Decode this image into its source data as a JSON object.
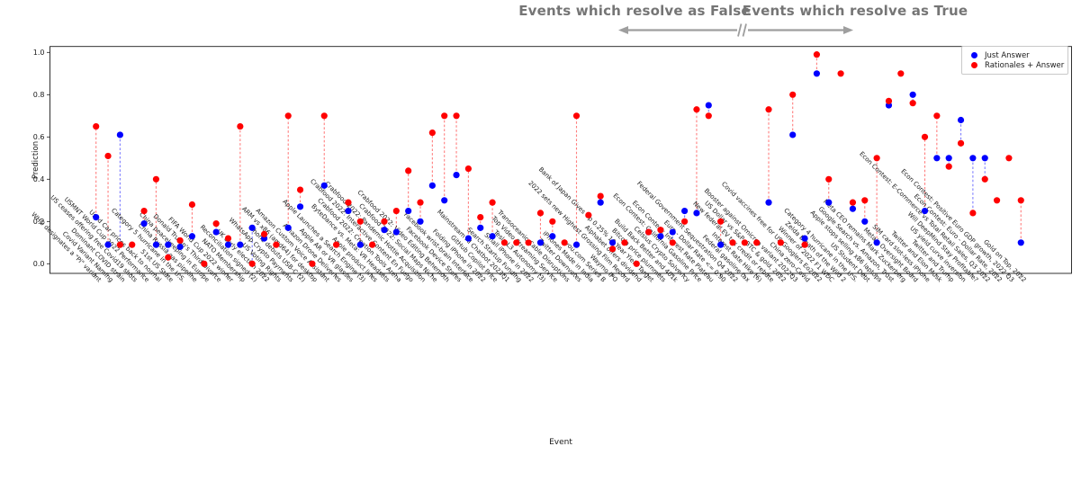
{
  "figure": {
    "annotations": {
      "false_group": "Events which resolve as False",
      "true_group": "Events which resolve as True",
      "arrow_color": "#9e9e9e",
      "text_color": "#757575"
    },
    "axes": {
      "ylabel": "Prediction",
      "xlabel": "Event"
    },
    "legend": {
      "items": [
        {
          "label": "Just Answer",
          "color": "#0000ff"
        },
        {
          "label": "Rationales + Answer",
          "color": "#ff0000"
        }
      ]
    }
  },
  "chart_data": {
    "type": "scatter",
    "title": "",
    "xlabel": "Event",
    "ylabel": "Prediction",
    "ylim": [
      0.0,
      1.0
    ],
    "yticks": [
      0,
      0.2,
      0.4,
      0.6,
      0.8,
      1.0
    ],
    "grid": false,
    "legend_position": "upper right",
    "divider_note": "arrow annotations split x-axis: left group resolves False, right group resolves True",
    "series": [
      {
        "name": "Just Answer",
        "color": "#0000ff"
      },
      {
        "name": "Rationales + Answer",
        "color": "#ff0000"
      }
    ],
    "events": [
      {
        "label": "WHO designates a \"Pi\" variant",
        "just_answer": 0.22,
        "rationales_answer": 0.65
      },
      {
        "label": "Covid Variant Naming",
        "just_answer": 0.09,
        "rationales_answer": 0.51
      },
      {
        "label": "Dominant COVID strain",
        "just_answer": 0.61,
        "rationales_answer": 0.09
      },
      {
        "label": "US ceases offering free Covid19 shots",
        "just_answer": null,
        "rationales_answer": 0.09
      },
      {
        "label": "USMNT World Cup 2022 Performance",
        "just_answer": 0.19,
        "rationales_answer": 0.25
      },
      {
        "label": "Used Car prices back to normal",
        "just_answer": 0.09,
        "rationales_answer": 0.4
      },
      {
        "label": "51st US State",
        "just_answer": 0.09,
        "rationales_answer": 0.03
      },
      {
        "label": "Category 5 hurricane in the U.S.",
        "just_answer": 0.08,
        "rationales_answer": 0.11
      },
      {
        "label": "China Russia gas pipeline",
        "just_answer": 0.13,
        "rationales_answer": 0.28
      },
      {
        "label": "China peacekeeping in Europe",
        "just_answer": null,
        "rationales_answer": 0.0
      },
      {
        "label": "Donald Trump's Third Divorce",
        "just_answer": 0.15,
        "rationales_answer": 0.19
      },
      {
        "label": "FIFA World Cup 2022 winner",
        "just_answer": 0.09,
        "rationales_answer": 0.12
      },
      {
        "label": "NATO Membership",
        "just_answer": 0.09,
        "rationales_answer": 0.65
      },
      {
        "label": "Reconciliation signed (2)",
        "just_answer": 0.17,
        "rationales_answer": 0.0
      },
      {
        "label": "UK early election 2022",
        "just_answer": 0.12,
        "rationales_answer": 0.14
      },
      {
        "label": "US Voting Rights",
        "just_answer": null,
        "rationales_answer": 0.09
      },
      {
        "label": "WhatsApp Crypto Payments",
        "just_answer": 0.17,
        "rationales_answer": 0.7
      },
      {
        "label": "iPhone debuts USB-C (2)",
        "just_answer": 0.27,
        "rationales_answer": 0.35
      },
      {
        "label": "ARM vs x86 (amd64) for desktop",
        "just_answer": null,
        "rationales_answer": 0.0
      },
      {
        "label": "Amazon Custom Voice Assistant",
        "just_answer": 0.37,
        "rationales_answer": 0.7
      },
      {
        "label": "Amazon Drone Deliveries",
        "just_answer": null,
        "rationales_answer": 0.09
      },
      {
        "label": "Apple AR or VR glasses",
        "just_answer": 0.25,
        "rationales_answer": 0.29
      },
      {
        "label": "Apple Launches a Search Engine (3)",
        "just_answer": 0.09,
        "rationales_answer": 0.2
      },
      {
        "label": "Apple product lines",
        "just_answer": null,
        "rationales_answer": 0.09
      },
      {
        "label": "ByteDance vs. Meta: VR Headsets",
        "just_answer": 0.16,
        "rationales_answer": 0.2
      },
      {
        "label": "Crabfood 2022: Creation Tools Arena",
        "just_answer": 0.15,
        "rationales_answer": 0.25
      },
      {
        "label": "Crabfood 2022: Interactive Content En Fuego",
        "just_answer": 0.25,
        "rationales_answer": 0.44
      },
      {
        "label": "Crabfood 2022: Pandemic Hottie Acquisition",
        "just_answer": 0.2,
        "rationales_answer": 0.29
      },
      {
        "label": "Crabfood 2022: Social Maps Niche",
        "just_answer": 0.37,
        "rationales_answer": 0.62
      },
      {
        "label": "Crabfood 2022: Video Editing Behemoth",
        "just_answer": 0.3,
        "rationales_answer": 0.7
      },
      {
        "label": "Facebook Device Stores",
        "just_answer": 0.42,
        "rationales_answer": 0.7
      },
      {
        "label": "Facebook wrist-brain Interface",
        "just_answer": 0.12,
        "rationales_answer": 0.45
      },
      {
        "label": "Folding iPhone in 2022",
        "just_answer": 0.17,
        "rationales_answer": 0.22
      },
      {
        "label": "GitHub Copilot Price",
        "just_answer": 0.13,
        "rationales_answer": 0.29
      },
      {
        "label": "Mainstream AI Chatbot 2023Q1",
        "just_answer": null,
        "rationales_answer": 0.1
      },
      {
        "label": "Search Startup Funding",
        "just_answer": null,
        "rationales_answer": 0.1
      },
      {
        "label": "Small iPhone in 2022",
        "just_answer": null,
        "rationales_answer": 0.1
      },
      {
        "label": "Tesla L3 Autonomy (3)",
        "just_answer": 0.1,
        "rationales_answer": 0.24
      },
      {
        "label": "Top Video Streaming Service",
        "just_answer": 0.13,
        "rationales_answer": 0.2
      },
      {
        "label": "Transoceanic Cable Disruptions",
        "just_answer": null,
        "rationales_answer": 0.1
      },
      {
        "label": "Twitter Downvotes",
        "just_answer": 0.09,
        "rationales_answer": 0.7
      },
      {
        "label": "iPhones Made in India",
        "just_answer": null,
        "rationales_answer": 0.23
      },
      {
        "label": "you.com Series B",
        "just_answer": 0.29,
        "rationales_answer": 0.32
      },
      {
        "label": "Waymo IPO",
        "just_answer": 0.1,
        "rationales_answer": 0.07
      },
      {
        "label": "2022 sets new Highest Grossing Film Record",
        "just_answer": null,
        "rationales_answer": 0.1
      },
      {
        "label": "Alphabet offers dividend",
        "just_answer": null,
        "rationales_answer": 0.0
      },
      {
        "label": "Bank of Japan Gives Up 0.25% 10 Year Yield Target",
        "just_answer": 0.15,
        "rationales_answer": 0.15
      },
      {
        "label": "Bitcoin price plummets",
        "just_answer": 0.13,
        "rationales_answer": 0.16
      },
      {
        "label": "Build Back Better and 401k",
        "just_answer": 0.15,
        "rationales_answer": 0.1
      },
      {
        "label": "Celsius Crypto Solvency",
        "just_answer": 0.25,
        "rationales_answer": 0.2
      },
      {
        "label": "Econ Contest: California Gasoline Price",
        "just_answer": 0.24,
        "rationales_answer": 0.73
      },
      {
        "label": "Econ Contest: Interest Rate Plateau",
        "just_answer": 0.75,
        "rationales_answer": 0.7
      },
      {
        "label": "Euro - Dollar Rate <= 0.90",
        "just_answer": 0.09,
        "rationales_answer": 0.2
      },
      {
        "label": "Federal Government Sequestration Q4 2022",
        "just_answer": null,
        "rationales_answer": 0.1
      },
      {
        "label": "Federal gasoline tax",
        "just_answer": null,
        "rationales_answer": 0.1
      },
      {
        "label": "Interest Rate Hike (6)",
        "just_answer": null,
        "rationales_answer": 0.1
      },
      {
        "label": "New federal EV tax credit or rebate",
        "just_answer": 0.29,
        "rationales_answer": 0.73
      },
      {
        "label": "US Dollar vs S&P, BTC & gold, 2022",
        "just_answer": null,
        "rationales_answer": 0.1
      },
      {
        "label": "Booster against Omicron variant 2022Q3",
        "just_answer": 0.61,
        "rationales_answer": 0.8
      },
      {
        "label": "China zero-Covid",
        "just_answer": 0.12,
        "rationales_answer": 0.09
      },
      {
        "label": "Covid vaccines free for US Googlers Eo2022",
        "just_answer": 0.9,
        "rationales_answer": 0.99
      },
      {
        "label": "Winner of 2022 F1 WDC",
        "just_answer": 0.29,
        "rationales_answer": 0.4
      },
      {
        "label": "Zelda Breath of the Wild 2",
        "just_answer": null,
        "rationales_answer": 0.9
      },
      {
        "label": "Category 4 hurricane in the U.S.",
        "just_answer": 0.26,
        "rationales_answer": 0.29
      },
      {
        "label": "US Student Debt",
        "just_answer": 0.2,
        "rationales_answer": 0.3
      },
      {
        "label": "Apple stops selling x86 laptops",
        "just_answer": 0.1,
        "rationales_answer": 0.5
      },
      {
        "label": "Google Search vs. Amazon, Trust",
        "just_answer": 0.75,
        "rationales_answer": 0.77
      },
      {
        "label": "Meta CEO remains Mark Zuckerberg",
        "just_answer": null,
        "rationales_answer": 0.9
      },
      {
        "label": "Meta's Oversight Board",
        "just_answer": 0.8,
        "rationales_answer": 0.76
      },
      {
        "label": "SIM card slot-less iPhone",
        "just_answer": 0.25,
        "rationales_answer": 0.6
      },
      {
        "label": "Twitter and Elon Musk",
        "just_answer": 0.5,
        "rationales_answer": 0.7
      },
      {
        "label": "Twitter and Trump",
        "just_answer": 0.5,
        "rationales_answer": 0.46
      },
      {
        "label": "US yield curve inversion",
        "just_answer": 0.68,
        "rationales_answer": 0.57
      },
      {
        "label": "Will DeepMind Stay Profitable?",
        "just_answer": 0.5,
        "rationales_answer": 0.24
      },
      {
        "label": "Econ Contest: E-Commerce vs Total Retail Sales, Q3 2022",
        "just_answer": 0.5,
        "rationales_answer": 0.4
      },
      {
        "label": "Econ Contest: Euro - Dollar Rate, 2022",
        "just_answer": null,
        "rationales_answer": 0.3
      },
      {
        "label": "Econ Contest: Positive Euro GDP growth, 2022 Q3",
        "just_answer": null,
        "rationales_answer": 0.5
      },
      {
        "label": "Gold on Top, 2022",
        "just_answer": 0.1,
        "rationales_answer": 0.3
      }
    ]
  }
}
